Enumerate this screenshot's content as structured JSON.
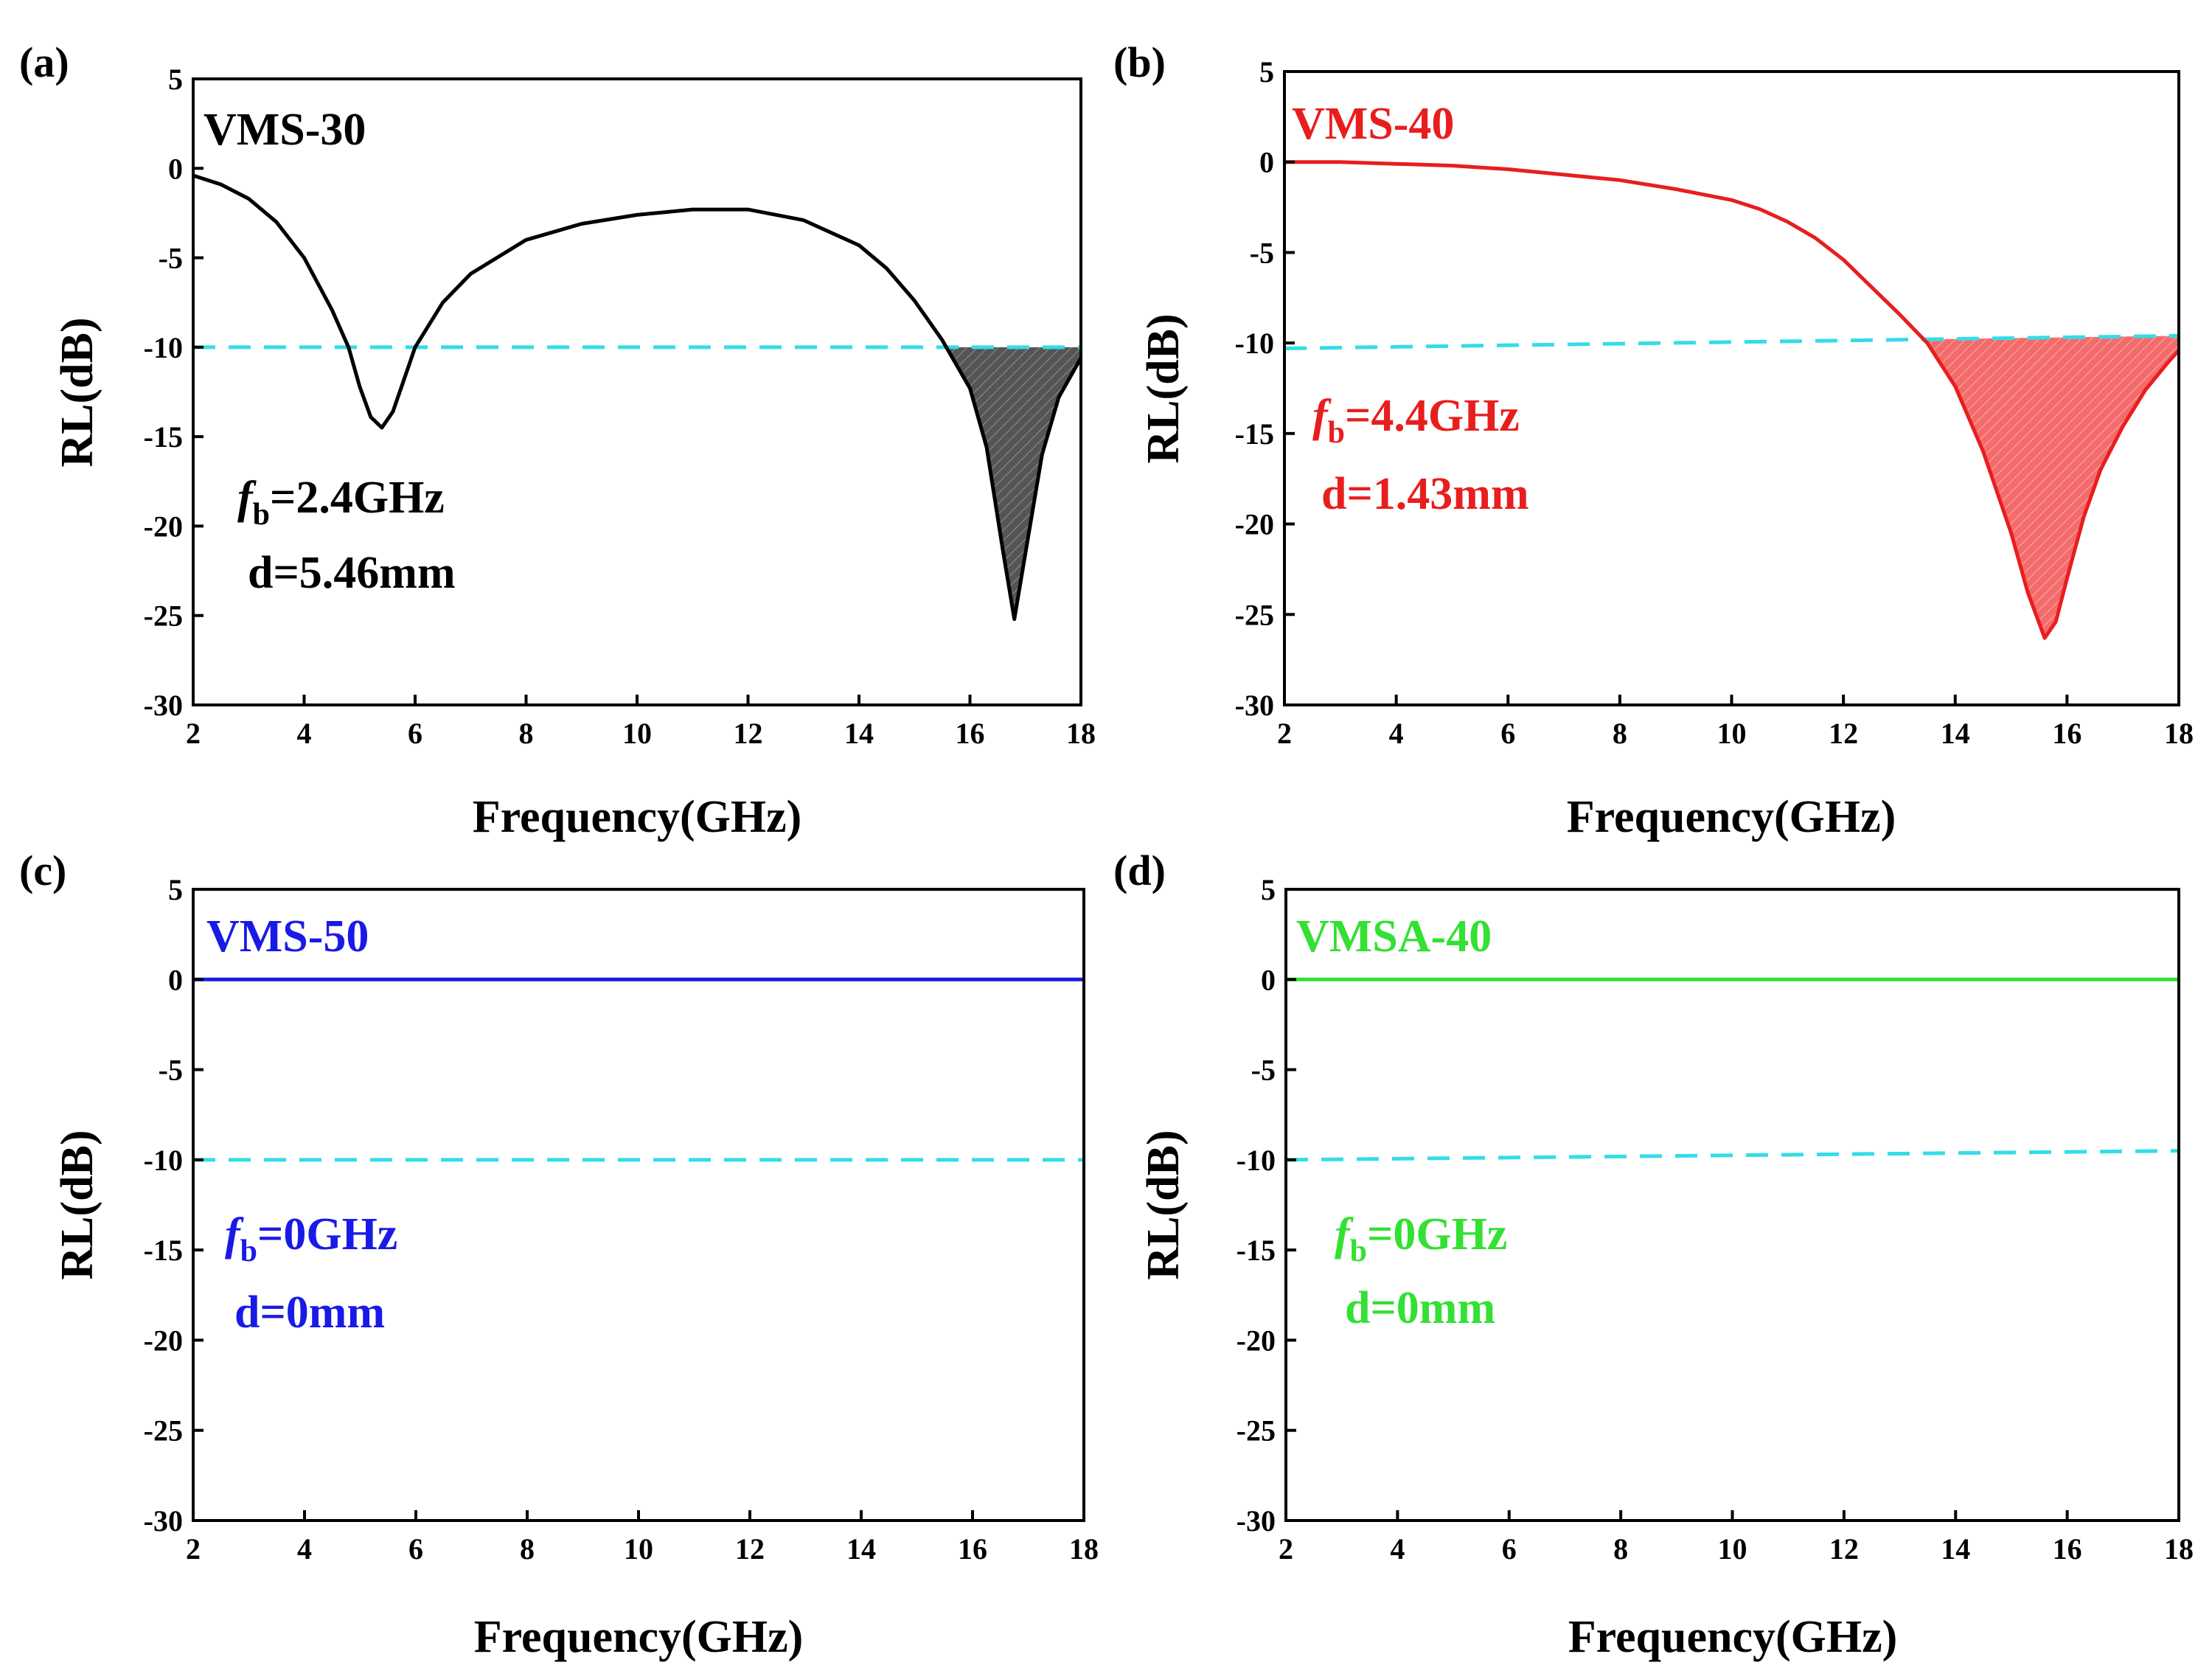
{
  "chart_data": [
    {
      "type": "line",
      "panel_label": "(a)",
      "series_label": "VMS-30",
      "color": "#000000",
      "fill_color": "#555555",
      "xlabel": "Frequency(GHz)",
      "ylabel": "RL(dB)",
      "xlim": [
        2,
        18
      ],
      "ylim": [
        -30,
        5
      ],
      "xticks": [
        2,
        4,
        6,
        8,
        10,
        12,
        14,
        16,
        18
      ],
      "yticks": [
        5,
        0,
        -5,
        -10,
        -15,
        -20,
        -25,
        -30
      ],
      "x": [
        2,
        2.5,
        3,
        3.5,
        4,
        4.5,
        4.8,
        5.0,
        5.2,
        5.4,
        5.6,
        5.8,
        6.0,
        6.5,
        7,
        8,
        9,
        10,
        11,
        12,
        13,
        14,
        14.5,
        15,
        15.5,
        16,
        16.3,
        16.6,
        16.8,
        17.0,
        17.3,
        17.6,
        18
      ],
      "y": [
        -0.4,
        -0.9,
        -1.7,
        -3.0,
        -5.0,
        -7.9,
        -10.0,
        -12.2,
        -13.9,
        -14.5,
        -13.6,
        -11.8,
        -10.0,
        -7.5,
        -5.9,
        -4.0,
        -3.1,
        -2.6,
        -2.3,
        -2.3,
        -2.9,
        -4.3,
        -5.6,
        -7.4,
        -9.6,
        -12.3,
        -15.6,
        -21.5,
        -25.2,
        -21.5,
        -16.0,
        -12.8,
        -10.6
      ],
      "reference_line": {
        "value": -10,
        "x_start": 2,
        "x_end": 18,
        "color": "#33dde8"
      },
      "shaded_region": [
        15.6,
        18
      ],
      "annotation": {
        "fb_prefix": "f",
        "fb_sub": "b",
        "fb_value": "=2.4GHz",
        "d": "d=5.46mm"
      }
    },
    {
      "type": "line",
      "panel_label": "(b)",
      "series_label": "VMS-40",
      "color": "#e81e1e",
      "fill_color": "#f46b6b",
      "xlabel": "Frequency(GHz)",
      "ylabel": "RL(dB)",
      "xlim": [
        2,
        18
      ],
      "ylim": [
        -30,
        5
      ],
      "xticks": [
        2,
        4,
        6,
        8,
        10,
        12,
        14,
        16,
        18
      ],
      "yticks": [
        5,
        0,
        -5,
        -10,
        -15,
        -20,
        -25,
        -30
      ],
      "x": [
        2,
        3,
        4,
        5,
        6,
        7,
        8,
        9,
        10,
        10.5,
        11,
        11.5,
        12,
        12.5,
        13,
        13.5,
        14,
        14.5,
        15,
        15.3,
        15.6,
        15.8,
        16,
        16.3,
        16.6,
        17,
        17.4,
        17.8,
        18
      ],
      "y": [
        0.0,
        0.0,
        -0.1,
        -0.2,
        -0.4,
        -0.7,
        -1.0,
        -1.5,
        -2.1,
        -2.6,
        -3.3,
        -4.2,
        -5.4,
        -6.9,
        -8.4,
        -10.0,
        -12.4,
        -16.0,
        -20.5,
        -23.8,
        -26.3,
        -25.4,
        -23.0,
        -19.6,
        -17.0,
        -14.6,
        -12.6,
        -11.1,
        -10.4
      ],
      "reference_line": {
        "value": -10,
        "value_start": -10.3,
        "value_end": -9.6,
        "x_start": 2,
        "x_end": 18,
        "color": "#33dde8"
      },
      "shaded_region": [
        13.5,
        18
      ],
      "annotation": {
        "fb_prefix": "f",
        "fb_sub": "b",
        "fb_value": "=4.4GHz",
        "d": "d=1.43mm"
      }
    },
    {
      "type": "line",
      "panel_label": "(c)",
      "series_label": "VMS-50",
      "color": "#1a1ae6",
      "xlabel": "Frequency(GHz)",
      "ylabel": "RL(dB)",
      "xlim": [
        2,
        18
      ],
      "ylim": [
        -30,
        5
      ],
      "xticks": [
        2,
        4,
        6,
        8,
        10,
        12,
        14,
        16,
        18
      ],
      "yticks": [
        5,
        0,
        -5,
        -10,
        -15,
        -20,
        -25,
        -30
      ],
      "x": [
        2,
        18
      ],
      "y": [
        0,
        0
      ],
      "reference_line": {
        "value": -10,
        "x_start": 2,
        "x_end": 18,
        "color": "#33dde8"
      },
      "annotation": {
        "fb_prefix": "f",
        "fb_sub": "b",
        "fb_value": "=0GHz",
        "d": "d=0mm"
      }
    },
    {
      "type": "line",
      "panel_label": "(d)",
      "series_label": "VMSA-40",
      "color": "#33e033",
      "xlabel": "Frequency(GHz)",
      "ylabel": "RL(dB)",
      "xlim": [
        2,
        18
      ],
      "ylim": [
        -30,
        5
      ],
      "xticks": [
        2,
        4,
        6,
        8,
        10,
        12,
        14,
        16,
        18
      ],
      "yticks": [
        5,
        0,
        -5,
        -10,
        -15,
        -20,
        -25,
        -30
      ],
      "x": [
        2,
        18
      ],
      "y": [
        0,
        0
      ],
      "reference_line": {
        "value": -10,
        "value_start": -10.0,
        "value_end": -9.5,
        "x_start": 2,
        "x_end": 18,
        "color": "#33dde8"
      },
      "annotation": {
        "fb_prefix": "f",
        "fb_sub": "b",
        "fb_value": "=0GHz",
        "d": "d=0mm"
      }
    }
  ]
}
